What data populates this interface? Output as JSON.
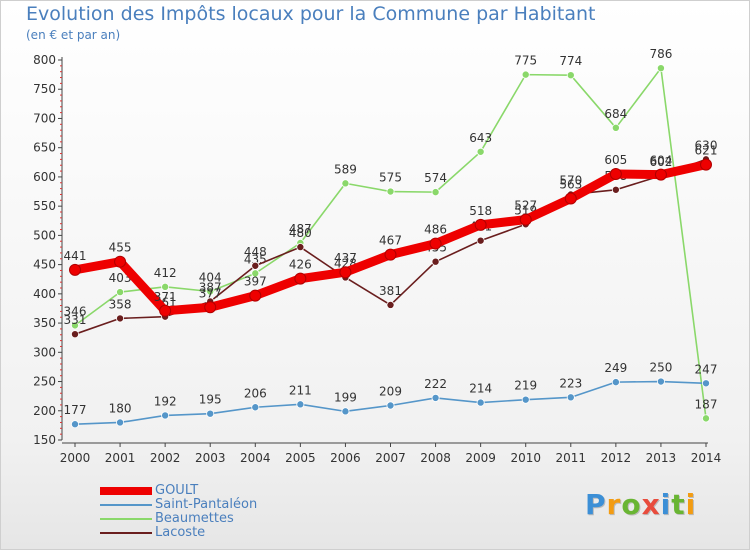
{
  "chart_data": {
    "type": "line",
    "title": "Evolution des Impôts locaux pour la Commune par Habitant",
    "subtitle": "(en € et par an)",
    "xlabel": "",
    "ylabel": "",
    "x": [
      2000,
      2001,
      2002,
      2003,
      2004,
      2005,
      2006,
      2007,
      2008,
      2009,
      2010,
      2011,
      2012,
      2013,
      2014
    ],
    "x_tick_labels": [
      "2000",
      "2001",
      "2002",
      "2003",
      "2004",
      "2005",
      "2006",
      "2007",
      "2008",
      "2009",
      "2010",
      "2011",
      "2012",
      "2013",
      "2014"
    ],
    "ylim": [
      150,
      800
    ],
    "y_ticks": [
      150,
      200,
      250,
      300,
      350,
      400,
      450,
      500,
      550,
      600,
      650,
      700,
      750,
      800
    ],
    "grid": false,
    "legend_position": "bottom-left",
    "series": [
      {
        "name": "Beaumettes",
        "color": "#8ad86a",
        "values": [
          346,
          403,
          412,
          404,
          435,
          487,
          589,
          575,
          574,
          643,
          775,
          774,
          684,
          786,
          187
        ]
      },
      {
        "name": "Lacoste",
        "color": "#6a1e1e",
        "values": [
          331,
          358,
          361,
          387,
          448,
          480,
          428,
          381,
          455,
          491,
          519,
          570,
          578,
          602,
          630
        ]
      },
      {
        "name": "Saint-Pantaléon",
        "color": "#5596c9",
        "values": [
          177,
          180,
          192,
          195,
          206,
          211,
          199,
          209,
          222,
          214,
          219,
          223,
          249,
          250,
          247
        ]
      },
      {
        "name": "GOULT",
        "color": "#ee0000",
        "values": [
          441,
          455,
          371,
          377,
          397,
          426,
          437,
          467,
          486,
          518,
          527,
          563,
          605,
          604,
          621
        ]
      }
    ]
  },
  "legend": {
    "items": [
      {
        "label": "GOULT",
        "color": "#ee0000",
        "thickness": 8
      },
      {
        "label": "Saint-Pantaléon",
        "color": "#5596c9",
        "thickness": 2
      },
      {
        "label": "Beaumettes",
        "color": "#8ad86a",
        "thickness": 2
      },
      {
        "label": "Lacoste",
        "color": "#6a1e1e",
        "thickness": 2
      }
    ]
  },
  "brand": {
    "letters": [
      "P",
      "r",
      "o",
      "x",
      "i",
      "t",
      "i"
    ],
    "colors": [
      "#3c8fd6",
      "#f39c12",
      "#69b533",
      "#e84c3d",
      "#3c8fd6",
      "#69b533",
      "#f39c12"
    ]
  }
}
